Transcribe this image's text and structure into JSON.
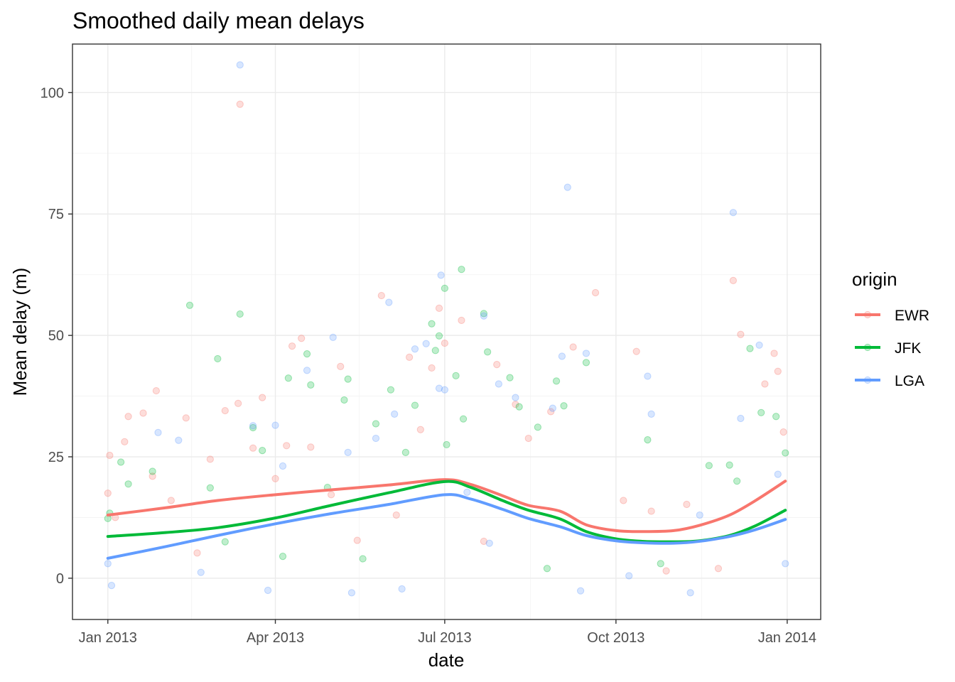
{
  "chart_data": {
    "type": "scatter",
    "title": "Smoothed daily mean delays",
    "xlabel": "date",
    "ylabel": "Mean delay (m)",
    "x_axis_type": "date",
    "xlim": [
      "2012-12-13",
      "2014-01-19"
    ],
    "ylim": [
      -8.5,
      110
    ],
    "x_ticks": [
      {
        "date": "2013-01-01",
        "label": "Jan 2013"
      },
      {
        "date": "2013-04-01",
        "label": "Apr 2013"
      },
      {
        "date": "2013-07-01",
        "label": "Jul 2013"
      },
      {
        "date": "2013-10-01",
        "label": "Oct 2013"
      },
      {
        "date": "2014-01-01",
        "label": "Jan 2014"
      }
    ],
    "y_ticks": [
      0,
      25,
      50,
      75,
      100
    ],
    "grid": true,
    "theme": "black-and-white",
    "point_opacity": 0.25,
    "legend": {
      "title": "origin",
      "placement": "right"
    },
    "series": [
      {
        "name": "EWR",
        "color": "#F8766D",
        "smooth": [
          {
            "x": "2013-01-01",
            "y": 13.0
          },
          {
            "x": "2013-02-01",
            "y": 14.5
          },
          {
            "x": "2013-03-01",
            "y": 16.0
          },
          {
            "x": "2013-04-01",
            "y": 17.2
          },
          {
            "x": "2013-05-01",
            "y": 18.2
          },
          {
            "x": "2013-06-01",
            "y": 19.2
          },
          {
            "x": "2013-07-01",
            "y": 20.3
          },
          {
            "x": "2013-07-15",
            "y": 19.3
          },
          {
            "x": "2013-08-01",
            "y": 17.0
          },
          {
            "x": "2013-08-15",
            "y": 15.0
          },
          {
            "x": "2013-09-01",
            "y": 13.8
          },
          {
            "x": "2013-09-15",
            "y": 11.0
          },
          {
            "x": "2013-10-01",
            "y": 9.8
          },
          {
            "x": "2013-10-15",
            "y": 9.6
          },
          {
            "x": "2013-11-01",
            "y": 9.8
          },
          {
            "x": "2013-11-15",
            "y": 10.9
          },
          {
            "x": "2013-12-01",
            "y": 13.0
          },
          {
            "x": "2013-12-15",
            "y": 16.0
          },
          {
            "x": "2013-12-31",
            "y": 20.0
          }
        ],
        "points": [
          {
            "x": "2013-01-01",
            "y": 17.5
          },
          {
            "x": "2013-01-02",
            "y": 25.3
          },
          {
            "x": "2013-01-05",
            "y": 12.5
          },
          {
            "x": "2013-01-10",
            "y": 28.1
          },
          {
            "x": "2013-01-12",
            "y": 33.3
          },
          {
            "x": "2013-01-20",
            "y": 34.0
          },
          {
            "x": "2013-01-25",
            "y": 21.0
          },
          {
            "x": "2013-01-27",
            "y": 38.6
          },
          {
            "x": "2013-02-04",
            "y": 16.0
          },
          {
            "x": "2013-02-12",
            "y": 33.0
          },
          {
            "x": "2013-02-25",
            "y": 24.5
          },
          {
            "x": "2013-03-05",
            "y": 34.5
          },
          {
            "x": "2013-03-12",
            "y": 36.0
          },
          {
            "x": "2013-03-13",
            "y": 97.6
          },
          {
            "x": "2013-03-20",
            "y": 26.8
          },
          {
            "x": "2013-03-25",
            "y": 37.2
          },
          {
            "x": "2013-04-01",
            "y": 20.5
          },
          {
            "x": "2013-04-07",
            "y": 27.3
          },
          {
            "x": "2013-04-10",
            "y": 47.8
          },
          {
            "x": "2013-04-15",
            "y": 49.4
          },
          {
            "x": "2013-04-20",
            "y": 27.0
          },
          {
            "x": "2013-05-01",
            "y": 17.2
          },
          {
            "x": "2013-05-06",
            "y": 43.6
          },
          {
            "x": "2013-05-15",
            "y": 7.8
          },
          {
            "x": "2013-05-28",
            "y": 58.2
          },
          {
            "x": "2013-06-05",
            "y": 13.0
          },
          {
            "x": "2013-06-12",
            "y": 45.5
          },
          {
            "x": "2013-06-18",
            "y": 30.6
          },
          {
            "x": "2013-06-24",
            "y": 43.3
          },
          {
            "x": "2013-06-28",
            "y": 55.6
          },
          {
            "x": "2013-07-01",
            "y": 48.4
          },
          {
            "x": "2013-07-10",
            "y": 53.1
          },
          {
            "x": "2013-07-22",
            "y": 7.6
          },
          {
            "x": "2013-07-29",
            "y": 44.0
          },
          {
            "x": "2013-08-08",
            "y": 35.8
          },
          {
            "x": "2013-08-15",
            "y": 28.8
          },
          {
            "x": "2013-08-27",
            "y": 34.3
          },
          {
            "x": "2013-09-08",
            "y": 47.6
          },
          {
            "x": "2013-09-20",
            "y": 58.8
          },
          {
            "x": "2013-10-05",
            "y": 16.0
          },
          {
            "x": "2013-10-12",
            "y": 46.7
          },
          {
            "x": "2013-10-20",
            "y": 13.8
          },
          {
            "x": "2013-11-08",
            "y": 15.2
          },
          {
            "x": "2013-12-03",
            "y": 61.3
          },
          {
            "x": "2013-12-07",
            "y": 50.2
          },
          {
            "x": "2013-12-20",
            "y": 40.0
          },
          {
            "x": "2013-12-25",
            "y": 46.3
          },
          {
            "x": "2013-12-27",
            "y": 42.6
          },
          {
            "x": "2013-12-30",
            "y": 30.1
          },
          {
            "x": "2013-11-25",
            "y": 2.0
          },
          {
            "x": "2013-10-28",
            "y": 1.5
          },
          {
            "x": "2013-02-18",
            "y": 5.2
          }
        ]
      },
      {
        "name": "JFK",
        "color": "#00BA38",
        "smooth": [
          {
            "x": "2013-01-01",
            "y": 8.6
          },
          {
            "x": "2013-02-01",
            "y": 9.4
          },
          {
            "x": "2013-03-01",
            "y": 10.4
          },
          {
            "x": "2013-04-01",
            "y": 12.4
          },
          {
            "x": "2013-05-01",
            "y": 15.0
          },
          {
            "x": "2013-06-01",
            "y": 17.6
          },
          {
            "x": "2013-07-01",
            "y": 19.9
          },
          {
            "x": "2013-07-15",
            "y": 18.7
          },
          {
            "x": "2013-08-01",
            "y": 16.0
          },
          {
            "x": "2013-08-15",
            "y": 14.0
          },
          {
            "x": "2013-09-01",
            "y": 12.2
          },
          {
            "x": "2013-09-15",
            "y": 9.6
          },
          {
            "x": "2013-10-01",
            "y": 8.1
          },
          {
            "x": "2013-10-15",
            "y": 7.6
          },
          {
            "x": "2013-11-01",
            "y": 7.5
          },
          {
            "x": "2013-11-15",
            "y": 7.7
          },
          {
            "x": "2013-12-01",
            "y": 8.8
          },
          {
            "x": "2013-12-15",
            "y": 10.8
          },
          {
            "x": "2013-12-31",
            "y": 14.0
          }
        ],
        "points": [
          {
            "x": "2013-01-01",
            "y": 12.3
          },
          {
            "x": "2013-01-02",
            "y": 13.4
          },
          {
            "x": "2013-01-08",
            "y": 23.9
          },
          {
            "x": "2013-01-12",
            "y": 19.4
          },
          {
            "x": "2013-01-25",
            "y": 22.0
          },
          {
            "x": "2013-02-14",
            "y": 56.2
          },
          {
            "x": "2013-02-25",
            "y": 18.6
          },
          {
            "x": "2013-03-01",
            "y": 45.2
          },
          {
            "x": "2013-03-13",
            "y": 54.4
          },
          {
            "x": "2013-03-20",
            "y": 31.0
          },
          {
            "x": "2013-03-25",
            "y": 26.3
          },
          {
            "x": "2013-04-05",
            "y": 4.5
          },
          {
            "x": "2013-04-08",
            "y": 41.2
          },
          {
            "x": "2013-04-18",
            "y": 46.2
          },
          {
            "x": "2013-04-20",
            "y": 39.8
          },
          {
            "x": "2013-04-29",
            "y": 18.7
          },
          {
            "x": "2013-05-08",
            "y": 36.7
          },
          {
            "x": "2013-05-10",
            "y": 41.0
          },
          {
            "x": "2013-05-25",
            "y": 31.8
          },
          {
            "x": "2013-06-02",
            "y": 38.8
          },
          {
            "x": "2013-06-10",
            "y": 25.9
          },
          {
            "x": "2013-06-15",
            "y": 35.6
          },
          {
            "x": "2013-06-24",
            "y": 52.4
          },
          {
            "x": "2013-06-26",
            "y": 46.9
          },
          {
            "x": "2013-06-28",
            "y": 49.9
          },
          {
            "x": "2013-07-01",
            "y": 59.7
          },
          {
            "x": "2013-07-02",
            "y": 27.5
          },
          {
            "x": "2013-07-07",
            "y": 41.7
          },
          {
            "x": "2013-07-10",
            "y": 63.6
          },
          {
            "x": "2013-07-11",
            "y": 32.8
          },
          {
            "x": "2013-07-22",
            "y": 54.5
          },
          {
            "x": "2013-07-24",
            "y": 46.6
          },
          {
            "x": "2013-08-05",
            "y": 41.3
          },
          {
            "x": "2013-08-10",
            "y": 35.3
          },
          {
            "x": "2013-08-20",
            "y": 31.1
          },
          {
            "x": "2013-08-30",
            "y": 40.6
          },
          {
            "x": "2013-09-03",
            "y": 35.5
          },
          {
            "x": "2013-09-15",
            "y": 44.4
          },
          {
            "x": "2013-10-18",
            "y": 28.5
          },
          {
            "x": "2013-11-20",
            "y": 23.2
          },
          {
            "x": "2013-12-01",
            "y": 23.3
          },
          {
            "x": "2013-12-05",
            "y": 20.0
          },
          {
            "x": "2013-12-12",
            "y": 47.3
          },
          {
            "x": "2013-12-18",
            "y": 34.1
          },
          {
            "x": "2013-12-26",
            "y": 33.3
          },
          {
            "x": "2013-12-31",
            "y": 25.8
          },
          {
            "x": "2013-08-25",
            "y": 2.0
          },
          {
            "x": "2013-10-25",
            "y": 3.0
          },
          {
            "x": "2013-03-05",
            "y": 7.5
          },
          {
            "x": "2013-05-18",
            "y": 4.0
          }
        ]
      },
      {
        "name": "LGA",
        "color": "#619CFF",
        "smooth": [
          {
            "x": "2013-01-01",
            "y": 4.1
          },
          {
            "x": "2013-02-01",
            "y": 6.5
          },
          {
            "x": "2013-03-01",
            "y": 8.8
          },
          {
            "x": "2013-04-01",
            "y": 11.2
          },
          {
            "x": "2013-05-01",
            "y": 13.3
          },
          {
            "x": "2013-06-01",
            "y": 15.2
          },
          {
            "x": "2013-07-01",
            "y": 17.2
          },
          {
            "x": "2013-07-15",
            "y": 16.3
          },
          {
            "x": "2013-08-01",
            "y": 14.2
          },
          {
            "x": "2013-08-15",
            "y": 12.3
          },
          {
            "x": "2013-09-01",
            "y": 10.6
          },
          {
            "x": "2013-09-15",
            "y": 8.8
          },
          {
            "x": "2013-10-01",
            "y": 7.7
          },
          {
            "x": "2013-10-15",
            "y": 7.3
          },
          {
            "x": "2013-11-01",
            "y": 7.2
          },
          {
            "x": "2013-11-15",
            "y": 7.6
          },
          {
            "x": "2013-12-01",
            "y": 8.6
          },
          {
            "x": "2013-12-15",
            "y": 10.0
          },
          {
            "x": "2013-12-31",
            "y": 12.1
          }
        ],
        "points": [
          {
            "x": "2013-01-01",
            "y": 3.0
          },
          {
            "x": "2013-01-03",
            "y": -1.5
          },
          {
            "x": "2013-01-28",
            "y": 30.0
          },
          {
            "x": "2013-02-08",
            "y": 28.4
          },
          {
            "x": "2013-03-13",
            "y": 105.7
          },
          {
            "x": "2013-03-20",
            "y": 31.4
          },
          {
            "x": "2013-04-01",
            "y": 31.5
          },
          {
            "x": "2013-04-05",
            "y": 23.1
          },
          {
            "x": "2013-04-18",
            "y": 42.8
          },
          {
            "x": "2013-05-02",
            "y": 49.6
          },
          {
            "x": "2013-05-10",
            "y": 25.9
          },
          {
            "x": "2013-05-25",
            "y": 28.8
          },
          {
            "x": "2013-06-01",
            "y": 56.8
          },
          {
            "x": "2013-06-04",
            "y": 33.8
          },
          {
            "x": "2013-06-15",
            "y": 47.2
          },
          {
            "x": "2013-06-21",
            "y": 48.3
          },
          {
            "x": "2013-06-28",
            "y": 39.1
          },
          {
            "x": "2013-06-29",
            "y": 62.4
          },
          {
            "x": "2013-07-01",
            "y": 38.8
          },
          {
            "x": "2013-07-13",
            "y": 17.7
          },
          {
            "x": "2013-07-22",
            "y": 54.0
          },
          {
            "x": "2013-07-30",
            "y": 40.0
          },
          {
            "x": "2013-08-08",
            "y": 37.2
          },
          {
            "x": "2013-08-28",
            "y": 35.0
          },
          {
            "x": "2013-09-02",
            "y": 45.7
          },
          {
            "x": "2013-09-05",
            "y": 80.5
          },
          {
            "x": "2013-09-15",
            "y": 46.3
          },
          {
            "x": "2013-10-18",
            "y": 41.6
          },
          {
            "x": "2013-10-20",
            "y": 33.8
          },
          {
            "x": "2013-11-15",
            "y": 13.0
          },
          {
            "x": "2013-12-03",
            "y": 75.3
          },
          {
            "x": "2013-12-07",
            "y": 32.9
          },
          {
            "x": "2013-12-17",
            "y": 48.0
          },
          {
            "x": "2013-12-27",
            "y": 21.4
          },
          {
            "x": "2013-12-31",
            "y": 3.0
          },
          {
            "x": "2013-03-28",
            "y": -2.5
          },
          {
            "x": "2013-05-12",
            "y": -3.0
          },
          {
            "x": "2013-06-08",
            "y": -2.2
          },
          {
            "x": "2013-09-12",
            "y": -2.6
          },
          {
            "x": "2013-11-10",
            "y": -3.0
          },
          {
            "x": "2013-07-25",
            "y": 7.2
          },
          {
            "x": "2013-10-08",
            "y": 0.5
          },
          {
            "x": "2013-02-20",
            "y": 1.2
          }
        ]
      }
    ]
  }
}
